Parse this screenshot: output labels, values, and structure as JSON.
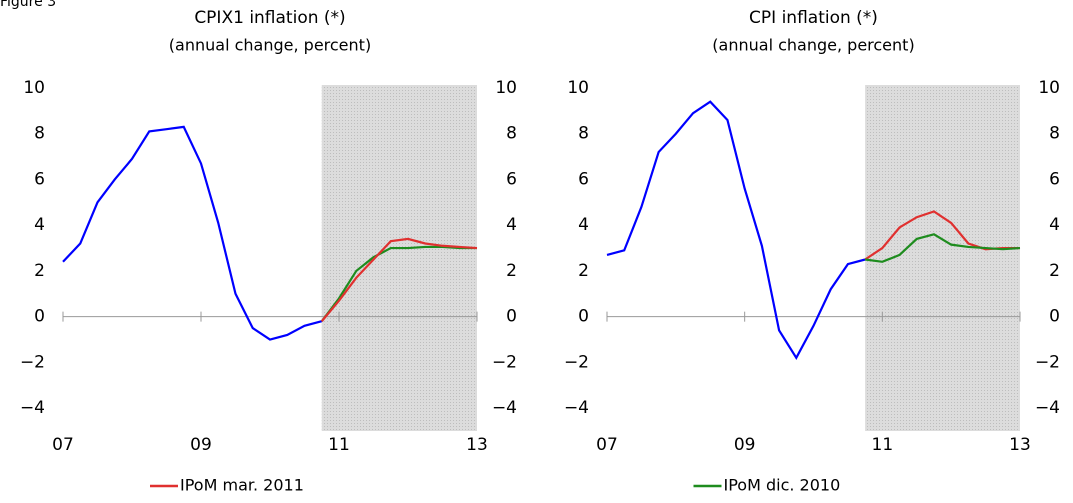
{
  "header": "Figure 3",
  "chart_data": [
    {
      "type": "line",
      "title": "CPIX1 inflation (*)",
      "subtitle": "(annual change, percent)",
      "x": [
        2007,
        2007.25,
        2007.5,
        2007.75,
        2008,
        2008.25,
        2008.5,
        2008.75,
        2009,
        2009.25,
        2009.5,
        2009.75,
        2010,
        2010.25,
        2010.5,
        2010.75,
        2011,
        2011.25,
        2011.5,
        2011.75,
        2012,
        2012.25,
        2012.5,
        2012.75,
        2013
      ],
      "series": [
        {
          "color": "#0000ff",
          "values": [
            2.4,
            3.2,
            5.0,
            6.0,
            6.9,
            8.1,
            8.2,
            8.3,
            6.7,
            4.1,
            1.0,
            -0.5,
            -1.0,
            -0.8,
            -0.4,
            -0.2,
            null,
            null,
            null,
            null,
            null,
            null,
            null,
            null,
            null
          ]
        },
        {
          "color": "#1e8c1e",
          "values": [
            null,
            null,
            null,
            null,
            null,
            null,
            null,
            null,
            null,
            null,
            null,
            null,
            null,
            null,
            null,
            -0.2,
            0.8,
            2.0,
            2.6,
            3.0,
            3.0,
            3.05,
            3.05,
            3.0,
            3.0
          ]
        },
        {
          "name": "IPoM mar. 2011",
          "color": "#e0302f",
          "values": [
            null,
            null,
            null,
            null,
            null,
            null,
            null,
            null,
            null,
            null,
            null,
            null,
            null,
            null,
            null,
            -0.2,
            0.7,
            1.7,
            2.5,
            3.3,
            3.4,
            3.2,
            3.1,
            3.05,
            3.0
          ]
        }
      ],
      "xlim": [
        2007,
        2013
      ],
      "xticks": [
        {
          "value": 2007,
          "label": "07"
        },
        {
          "value": 2009,
          "label": "09"
        },
        {
          "value": 2011,
          "label": "11"
        },
        {
          "value": 2013,
          "label": "13"
        }
      ],
      "ylim": [
        -5,
        10
      ],
      "yticks": [
        {
          "value": -4,
          "label": "−4"
        },
        {
          "value": -2,
          "label": "−2"
        },
        0,
        2,
        4,
        6,
        8,
        10
      ],
      "shade_x": [
        2010.75,
        2013
      ]
    },
    {
      "type": "line",
      "title": "CPI inflation (*)",
      "subtitle": "(annual change, percent)",
      "x": [
        2007,
        2007.25,
        2007.5,
        2007.75,
        2008,
        2008.25,
        2008.5,
        2008.75,
        2009,
        2009.25,
        2009.5,
        2009.75,
        2010,
        2010.25,
        2010.5,
        2010.75,
        2011,
        2011.25,
        2011.5,
        2011.75,
        2012,
        2012.25,
        2012.5,
        2012.75,
        2013
      ],
      "series": [
        {
          "color": "#0000ff",
          "values": [
            2.7,
            2.9,
            4.8,
            7.2,
            8.0,
            8.9,
            9.4,
            8.6,
            5.6,
            3.1,
            -0.6,
            -1.8,
            -0.4,
            1.2,
            2.3,
            2.5,
            null,
            null,
            null,
            null,
            null,
            null,
            null,
            null,
            null
          ]
        },
        {
          "color": "#e0302f",
          "values": [
            null,
            null,
            null,
            null,
            null,
            null,
            null,
            null,
            null,
            null,
            null,
            null,
            null,
            null,
            null,
            2.5,
            3.0,
            3.9,
            4.35,
            4.6,
            4.1,
            3.2,
            2.95,
            3.0,
            3.0
          ]
        },
        {
          "name": "IPoM dic. 2010",
          "color": "#1e8c1e",
          "values": [
            null,
            null,
            null,
            null,
            null,
            null,
            null,
            null,
            null,
            null,
            null,
            null,
            null,
            null,
            null,
            2.5,
            2.4,
            2.7,
            3.4,
            3.6,
            3.15,
            3.05,
            3.0,
            2.95,
            3.0
          ]
        }
      ],
      "xlim": [
        2007,
        2013
      ],
      "xticks": [
        {
          "value": 2007,
          "label": "07"
        },
        {
          "value": 2009,
          "label": "09"
        },
        {
          "value": 2011,
          "label": "11"
        },
        {
          "value": 2013,
          "label": "13"
        }
      ],
      "ylim": [
        -5,
        10
      ],
      "yticks": [
        {
          "value": -4,
          "label": "−4"
        },
        {
          "value": -2,
          "label": "−2"
        },
        0,
        2,
        4,
        6,
        8,
        10
      ],
      "shade_x": [
        2010.75,
        2013
      ]
    }
  ]
}
